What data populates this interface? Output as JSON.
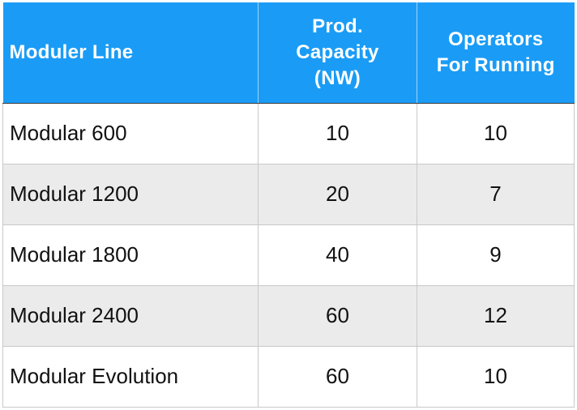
{
  "table": {
    "headers": [
      "Moduler Line",
      "Prod.\nCapacity\n(NW)",
      "Operators\nFor Running"
    ],
    "header_colors": {
      "background": "#1a9cf6",
      "text": "#ffffff",
      "row_alt": "#ebebeb"
    },
    "rows": [
      {
        "line": "Modular 600",
        "capacity": "10",
        "operators": "10"
      },
      {
        "line": "Modular 1200",
        "capacity": "20",
        "operators": "7"
      },
      {
        "line": "Modular 1800",
        "capacity": "40",
        "operators": "9"
      },
      {
        "line": "Modular 2400",
        "capacity": "60",
        "operators": "12"
      },
      {
        "line": "Modular Evolution",
        "capacity": "60",
        "operators": "10"
      }
    ]
  }
}
